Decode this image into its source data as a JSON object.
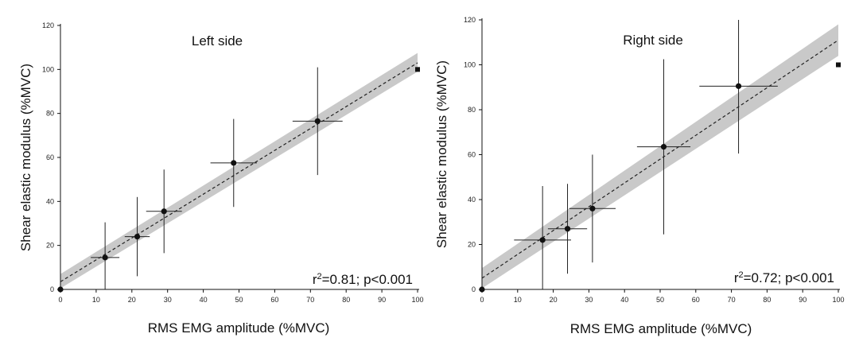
{
  "chart_data": [
    {
      "type": "scatter",
      "title": "Left side",
      "xlabel": "RMS EMG amplitude (%MVC)",
      "ylabel": "Shear elastic modulus (%MVC)",
      "xlim": [
        0,
        100
      ],
      "ylim": [
        0,
        120
      ],
      "xticks": [
        0,
        10,
        20,
        30,
        40,
        50,
        60,
        70,
        80,
        90,
        100
      ],
      "yticks": [
        0,
        20,
        40,
        60,
        80,
        100,
        120
      ],
      "stat": {
        "r2_prefix": "r",
        "r2_sup": "2",
        "r2_rest": "=0.81; p<0.001"
      },
      "points": [
        {
          "x": 0,
          "y": 0,
          "xerr": 0,
          "yerr": 0
        },
        {
          "x": 12.5,
          "y": 14.5,
          "xerr": 4,
          "yerr": 16
        },
        {
          "x": 21.5,
          "y": 24,
          "xerr": 3.5,
          "yerr": 18
        },
        {
          "x": 29,
          "y": 35.5,
          "xerr": 5,
          "yerr": 19
        },
        {
          "x": 48.5,
          "y": 57.5,
          "xerr": 6.5,
          "yerr": 20
        },
        {
          "x": 72,
          "y": 76.5,
          "xerr": 7,
          "yerr": 24.5
        },
        {
          "x": 100,
          "y": 100,
          "xerr": 0,
          "yerr": 0,
          "marker": "square"
        }
      ],
      "fit": {
        "x0": 0,
        "y0": 3.5,
        "x1": 100,
        "y1": 103,
        "ci_x": [
          0,
          100
        ],
        "ci_lower": [
          0.5,
          99
        ],
        "ci_upper": [
          7,
          107.5
        ]
      }
    },
    {
      "type": "scatter",
      "title": "Right side",
      "xlabel": "RMS EMG amplitude (%MVC)",
      "ylabel": "Shear elastic modulus (%MVC)",
      "xlim": [
        0,
        100
      ],
      "ylim": [
        0,
        120
      ],
      "xticks": [
        0,
        10,
        20,
        30,
        40,
        50,
        60,
        70,
        80,
        90,
        100
      ],
      "yticks": [
        0,
        20,
        40,
        60,
        80,
        100,
        120
      ],
      "stat": {
        "r2_prefix": "r",
        "r2_sup": "2",
        "r2_rest": "=0.72; p<0.001"
      },
      "points": [
        {
          "x": 0,
          "y": 0,
          "xerr": 0,
          "yerr": 0
        },
        {
          "x": 17,
          "y": 22,
          "xerr": 8,
          "yerr": 24
        },
        {
          "x": 24,
          "y": 27,
          "xerr": 5.5,
          "yerr": 20
        },
        {
          "x": 31,
          "y": 36,
          "xerr": 6.5,
          "yerr": 24
        },
        {
          "x": 51,
          "y": 63.5,
          "xerr": 7.5,
          "yerr": 39
        },
        {
          "x": 72,
          "y": 90.5,
          "xerr": 11,
          "yerr": 30
        },
        {
          "x": 100,
          "y": 100,
          "xerr": 0,
          "yerr": 0,
          "marker": "square"
        }
      ],
      "fit": {
        "x0": 0,
        "y0": 5,
        "x1": 100,
        "y1": 111,
        "ci_x": [
          0,
          100
        ],
        "ci_lower": [
          0.5,
          104
        ],
        "ci_upper": [
          9.5,
          118
        ]
      }
    }
  ]
}
